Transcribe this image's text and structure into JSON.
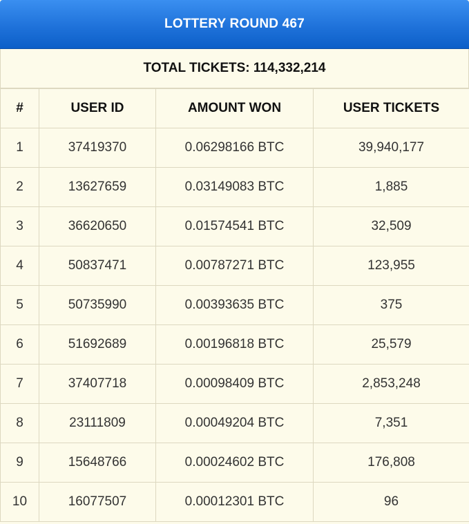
{
  "header": {
    "title": "LOTTERY ROUND 467",
    "total_label": "TOTAL TICKETS: 114,332,214"
  },
  "table": {
    "columns": [
      "#",
      "USER ID",
      "AMOUNT WON",
      "USER TICKETS"
    ],
    "rows": [
      {
        "rank": "1",
        "user_id": "37419370",
        "amount": "0.06298166 BTC",
        "tickets": "39,940,177"
      },
      {
        "rank": "2",
        "user_id": "13627659",
        "amount": "0.03149083 BTC",
        "tickets": "1,885"
      },
      {
        "rank": "3",
        "user_id": "36620650",
        "amount": "0.01574541 BTC",
        "tickets": "32,509"
      },
      {
        "rank": "4",
        "user_id": "50837471",
        "amount": "0.00787271 BTC",
        "tickets": "123,955"
      },
      {
        "rank": "5",
        "user_id": "50735990",
        "amount": "0.00393635 BTC",
        "tickets": "375"
      },
      {
        "rank": "6",
        "user_id": "51692689",
        "amount": "0.00196818 BTC",
        "tickets": "25,579"
      },
      {
        "rank": "7",
        "user_id": "37407718",
        "amount": "0.00098409 BTC",
        "tickets": "2,853,248"
      },
      {
        "rank": "8",
        "user_id": "23111809",
        "amount": "0.00049204 BTC",
        "tickets": "7,351"
      },
      {
        "rank": "9",
        "user_id": "15648766",
        "amount": "0.00024602 BTC",
        "tickets": "176,808"
      },
      {
        "rank": "10",
        "user_id": "16077507",
        "amount": "0.00012301 BTC",
        "tickets": "96"
      }
    ]
  },
  "colors": {
    "banner": "#1f72da",
    "background": "#fdfbea",
    "border": "#ddd8c0"
  }
}
